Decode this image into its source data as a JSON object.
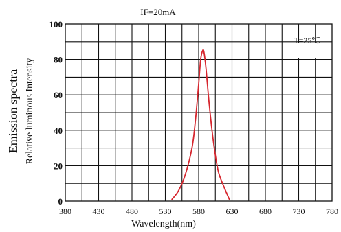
{
  "chart_data": {
    "type": "line",
    "title": "IF=20mA",
    "annotation": "T=25℃",
    "ylabel_main": "Emission spectra",
    "ylabel_sub": "Relative luminous Intensity",
    "xlabel": "Wavelength(nm)",
    "xlim": [
      380,
      780
    ],
    "ylim": [
      0,
      100
    ],
    "x_ticks": [
      "380",
      "430",
      "480",
      "530",
      "580",
      "630",
      "680",
      "730",
      "780"
    ],
    "y_ticks": [
      "0",
      "20",
      "40",
      "60",
      "80",
      "100"
    ],
    "grid": true,
    "grid_x_step": 25,
    "grid_y_step": 10,
    "series": [
      {
        "color": "#d6262e",
        "x": [
          540,
          550,
          560,
          570,
          575,
          580,
          583,
          586,
          588,
          591,
          595,
          600,
          605,
          610,
          618,
          626
        ],
        "y": [
          1,
          6,
          15,
          30,
          45,
          66,
          80,
          85,
          84,
          75,
          58,
          40,
          26,
          16,
          8,
          1
        ]
      }
    ]
  }
}
